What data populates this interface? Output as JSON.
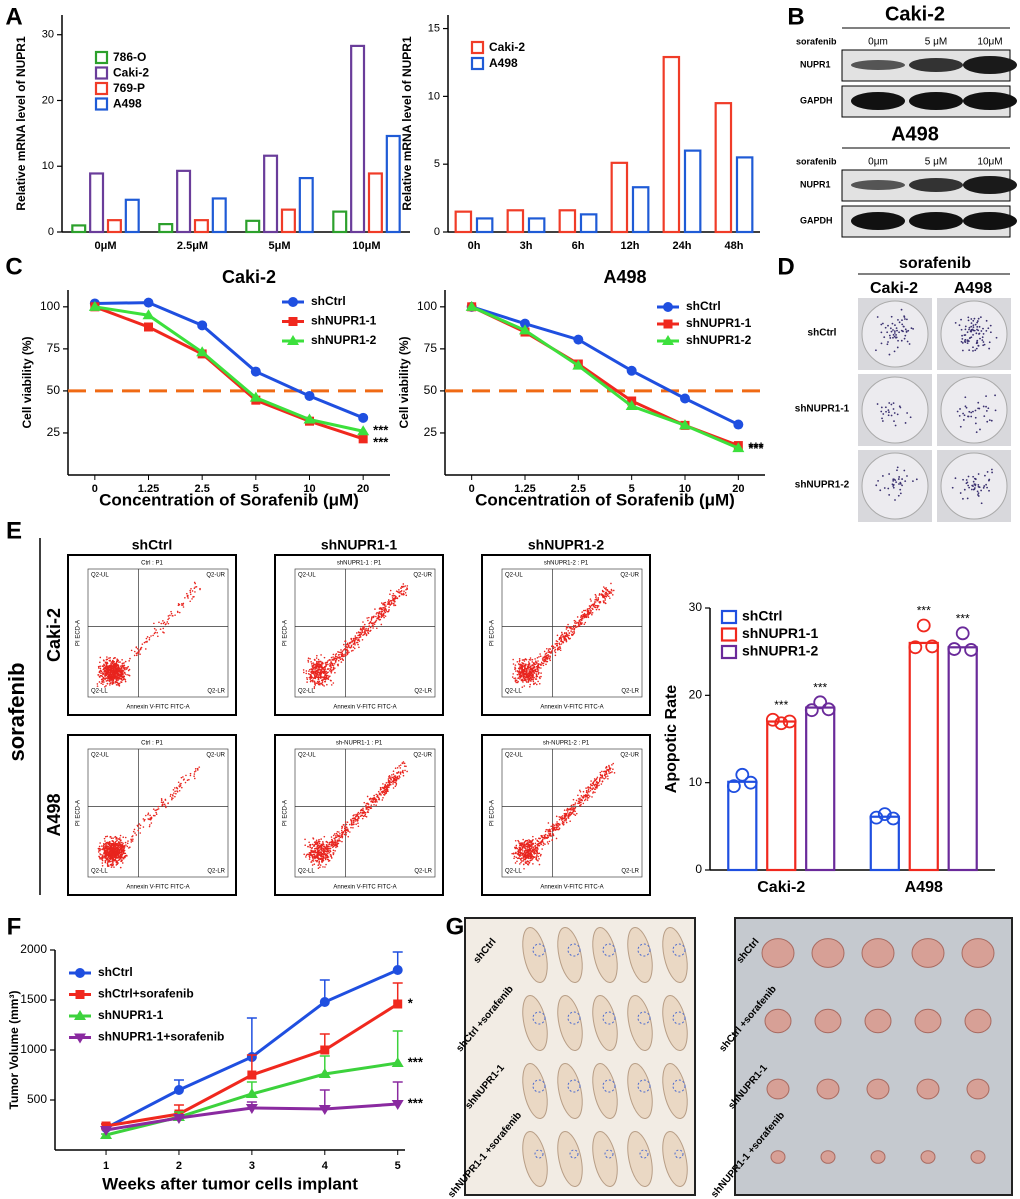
{
  "panels": [
    "A",
    "B",
    "C",
    "D",
    "E",
    "F",
    "G"
  ],
  "blot": {
    "groups": [
      {
        "title": "Caki-2",
        "treatment": "sorafenib",
        "doses": [
          "0μm",
          "5 μM",
          "10μM"
        ],
        "rows": [
          "NUPR1",
          "GAPDH"
        ]
      },
      {
        "title": "A498",
        "treatment": "sorafenib",
        "doses": [
          "0μm",
          "5 μM",
          "10μM"
        ],
        "rows": [
          "NUPR1",
          "GAPDH"
        ]
      }
    ]
  },
  "colony": {
    "treatment": "sorafenib",
    "columns": [
      "Caki-2",
      "A498"
    ],
    "rows": [
      "shCtrl",
      "shNUPR1-1",
      "shNUPR1-2"
    ]
  },
  "flow": {
    "treatment": "sorafenib",
    "columns": [
      "shCtrl",
      "shNUPR1-1",
      "shNUPR1-2"
    ],
    "rows": [
      "Caki-2",
      "A498"
    ],
    "plot_titles": [
      [
        "Ctrl : P1",
        "shNUPR1-1 : P1",
        "shNUPR1-2 : P1"
      ],
      [
        "Ctrl : P1",
        "sh-NUPR1-1 : P1",
        "sh-NUPR1-2 : P1"
      ]
    ],
    "quadrants": [
      "Q2-UL",
      "Q2-UR",
      "Q2-LL",
      "Q2-LR"
    ],
    "x_axis": "Annexin V-FITC FITC-A",
    "y_axis": "PI ECD-A"
  },
  "mice": {
    "rows": [
      "shCtrl",
      "shCtrl +sorafenib",
      "shNUPR1-1",
      "shNUPR1-1 +sorafenib"
    ]
  },
  "chart_data": [
    {
      "type": "bar",
      "ylabel": "Relative mRNA level of NUPR1",
      "categories": [
        "0μM",
        "2.5μM",
        "5μM",
        "10μM"
      ],
      "series": [
        {
          "name": "786-O",
          "color": "#2ca02c",
          "values": [
            1.0,
            1.2,
            1.7,
            3.1
          ]
        },
        {
          "name": "Caki-2",
          "color": "#6a3d9a",
          "values": [
            8.9,
            9.3,
            11.6,
            28.3
          ]
        },
        {
          "name": "769-P",
          "color": "#f03c28",
          "values": [
            1.8,
            1.8,
            3.4,
            8.9
          ]
        },
        {
          "name": "A498",
          "color": "#1f5bd6",
          "values": [
            4.9,
            5.1,
            8.2,
            14.6
          ]
        }
      ],
      "ylim": [
        0,
        33
      ],
      "yticks": [
        0,
        10,
        20,
        30
      ]
    },
    {
      "type": "bar",
      "ylabel": "Relative mRNA level of NUPR1",
      "categories": [
        "0h",
        "3h",
        "6h",
        "12h",
        "24h",
        "48h"
      ],
      "series": [
        {
          "name": "Caki-2",
          "color": "#f03c28",
          "values": [
            1.5,
            1.6,
            1.6,
            5.1,
            12.9,
            9.5
          ]
        },
        {
          "name": "A498",
          "color": "#1f5bd6",
          "values": [
            1.0,
            1.0,
            1.3,
            3.3,
            6.0,
            5.5
          ]
        }
      ],
      "ylim": [
        0,
        16
      ],
      "yticks": [
        0,
        5,
        10,
        15
      ]
    },
    {
      "type": "line",
      "title": "Caki-2",
      "xlabel": "Concentration of Sorafenib (μM)",
      "ylabel": "Cell viability (%)",
      "categories": [
        "0",
        "1.25",
        "2.5",
        "5",
        "10",
        "20"
      ],
      "series": [
        {
          "name": "shCtrl",
          "color": "#1f4fe0",
          "marker": "circle",
          "values": [
            102,
            102.5,
            89,
            61.5,
            47,
            34
          ]
        },
        {
          "name": "shNUPR1-1",
          "color": "#f0281e",
          "marker": "square",
          "values": [
            100,
            88,
            72,
            44.5,
            32,
            21.5
          ],
          "significance": "***"
        },
        {
          "name": "shNUPR1-2",
          "color": "#3ce03c",
          "marker": "triangle",
          "values": [
            100,
            95,
            73,
            46,
            33,
            26
          ],
          "significance": "***"
        }
      ],
      "reference_line": 50,
      "reference_color": "#f06a14",
      "ylim": [
        0,
        110
      ],
      "yticks": [
        25,
        50,
        75,
        100
      ]
    },
    {
      "type": "line",
      "title": "A498",
      "xlabel": "Concentration of Sorafenib (μM)",
      "ylabel": "Cell viability (%)",
      "categories": [
        "0",
        "1.25",
        "2.5",
        "5",
        "10",
        "20"
      ],
      "series": [
        {
          "name": "shCtrl",
          "color": "#1f4fe0",
          "marker": "circle",
          "values": [
            100,
            90,
            80.5,
            62,
            45.5,
            30
          ]
        },
        {
          "name": "shNUPR1-1",
          "color": "#f0281e",
          "marker": "square",
          "values": [
            100,
            85,
            66,
            44,
            29.5,
            17.5
          ],
          "significance": "***"
        },
        {
          "name": "shNUPR1-2",
          "color": "#3ce03c",
          "marker": "triangle",
          "values": [
            100,
            86,
            65,
            41,
            29.5,
            16
          ],
          "significance": "***"
        }
      ],
      "reference_line": 50,
      "reference_color": "#f06a14",
      "ylim": [
        0,
        110
      ],
      "yticks": [
        25,
        50,
        75,
        100
      ]
    },
    {
      "type": "bar",
      "ylabel": "Apopotic Rate",
      "categories": [
        "Caki-2",
        "A498"
      ],
      "series": [
        {
          "name": "shCtrl",
          "color": "#1f4fe0",
          "values": [
            10.1,
            6.1
          ],
          "points": [
            [
              9.6,
              10.9,
              10.0
            ],
            [
              6.0,
              6.4,
              5.9
            ]
          ]
        },
        {
          "name": "shNUPR1-1",
          "color": "#f0281e",
          "values": [
            17,
            26
          ],
          "points": [
            [
              17.2,
              16.8,
              17.0
            ],
            [
              25.5,
              28.0,
              25.6
            ]
          ],
          "significance": [
            "***",
            "***"
          ]
        },
        {
          "name": "shNUPR1-2",
          "color": "#6a2a9a",
          "values": [
            18.6,
            25.5
          ],
          "points": [
            [
              18.3,
              19.2,
              18.4
            ],
            [
              25.3,
              27.1,
              25.2
            ]
          ],
          "significance": [
            "***",
            "***"
          ]
        }
      ],
      "ylim": [
        0,
        30
      ],
      "yticks": [
        0,
        10,
        20,
        30
      ]
    },
    {
      "type": "line",
      "xlabel": "Weeks after tumor cells implant",
      "ylabel": "Tumor Volume (mm³)",
      "x": [
        1,
        2,
        3,
        4,
        5
      ],
      "series": [
        {
          "name": "shCtrl",
          "color": "#1f4fe0",
          "marker": "circle",
          "values": [
            220,
            600,
            930,
            1480,
            1800
          ],
          "errors": [
            40,
            100,
            390,
            220,
            180
          ]
        },
        {
          "name": "shCtrl+sorafenib",
          "color": "#f0281e",
          "marker": "square",
          "values": [
            240,
            360,
            750,
            1000,
            1460
          ],
          "errors": [
            20,
            90,
            200,
            160,
            210
          ],
          "significance": "*"
        },
        {
          "name": "shNUPR1-1",
          "color": "#3cd23c",
          "marker": "triangle",
          "values": [
            150,
            330,
            560,
            760,
            870
          ],
          "errors": [
            10,
            50,
            120,
            180,
            320
          ],
          "significance": "***"
        },
        {
          "name": "shNUPR1-1+sorafenib",
          "color": "#8a2aa0",
          "marker": "triangle-down",
          "values": [
            200,
            320,
            420,
            410,
            460
          ],
          "errors": [
            15,
            30,
            60,
            190,
            220
          ],
          "significance": "***"
        }
      ],
      "xlim": [
        0.3,
        5.1
      ],
      "xticks": [
        1,
        2,
        3,
        4,
        5
      ],
      "ylim": [
        0,
        2000
      ],
      "yticks": [
        500,
        1000,
        1500,
        2000
      ]
    }
  ]
}
